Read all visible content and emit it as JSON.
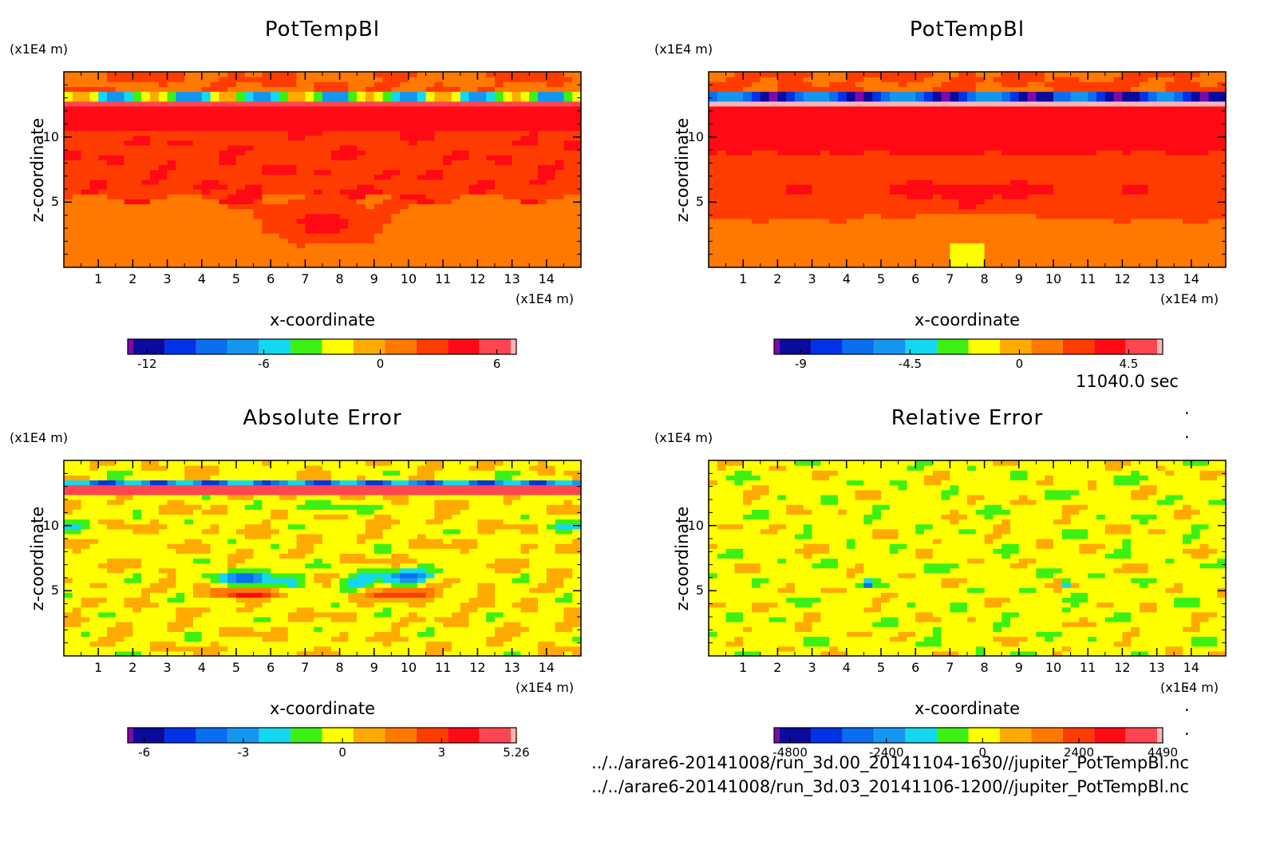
{
  "timestamp": "11040.0 sec",
  "files": [
    "../../arare6-20141008/run_3d.00_20141104-1630//jupiter_PotTempBl.nc",
    "../../arare6-20141008/run_3d.03_20141106-1200//jupiter_PotTempBl.nc"
  ],
  "chart_data": [
    {
      "type": "heatmap",
      "title": "PotTempBl",
      "xlabel": "x-coordinate",
      "ylabel": "z-coordinate",
      "x_unit": "(x1E4 m)",
      "y_unit": "(x1E4 m)",
      "xlim": [
        0,
        15
      ],
      "ylim": [
        0,
        15
      ],
      "x_ticks": [
        "1",
        "2",
        "3",
        "4",
        "5",
        "6",
        "7",
        "8",
        "9",
        "10",
        "11",
        "12",
        "13",
        "14"
      ],
      "y_ticks": [
        "5",
        "10"
      ],
      "colorbar": {
        "colors": [
          "#7d0aa8",
          "#0a0a9c",
          "#0032e6",
          "#0a6ef0",
          "#1496f0",
          "#14d7f0",
          "#3cf014",
          "#ffff00",
          "#ffaa00",
          "#ff7800",
          "#ff3c00",
          "#ff0a14",
          "#ff4650",
          "#ffb4b4"
        ],
        "range": [
          -13,
          7
        ],
        "tick_values": [
          -12,
          -6,
          0,
          6
        ],
        "tick_labels": [
          "-12",
          "-6",
          "0",
          "6"
        ]
      },
      "field_values": [
        {
          "z": [
            0,
            3.7
          ],
          "value": 0.5
        },
        {
          "z": [
            3.7,
            5.3
          ],
          "value": 2.5
        },
        {
          "z": [
            5.3,
            10.5
          ],
          "value": 2.5
        },
        {
          "z": [
            10.5,
            12.3
          ],
          "value": 3.5
        },
        {
          "z": [
            12.3,
            12.9
          ],
          "value": 5.0
        },
        {
          "z": [
            12.9,
            13.4
          ],
          "value": -4.5
        },
        {
          "z": [
            13.4,
            15
          ],
          "value": 1.5
        }
      ]
    },
    {
      "type": "heatmap",
      "title": "PotTempBl",
      "xlabel": "x-coordinate",
      "ylabel": "z-coordinate",
      "x_unit": "(x1E4 m)",
      "y_unit": "(x1E4 m)",
      "xlim": [
        0,
        15
      ],
      "ylim": [
        0,
        15
      ],
      "x_ticks": [
        "1",
        "2",
        "3",
        "4",
        "5",
        "6",
        "7",
        "8",
        "9",
        "10",
        "11",
        "12",
        "13",
        "14"
      ],
      "y_ticks": [
        "5",
        "10"
      ],
      "colorbar": {
        "colors": [
          "#7d0aa8",
          "#0a0a9c",
          "#0032e6",
          "#0a6ef0",
          "#1496f0",
          "#14d7f0",
          "#3cf014",
          "#ffff00",
          "#ffaa00",
          "#ff7800",
          "#ff3c00",
          "#ff0a14",
          "#ff4650",
          "#ffb4b4"
        ],
        "range": [
          -10.1,
          5.9
        ],
        "tick_values": [
          -9,
          -4.5,
          0,
          4.5
        ],
        "tick_labels": [
          "-9",
          "-4.5",
          "0",
          "4.5"
        ]
      },
      "field_values": [
        {
          "z": [
            0,
            3.7
          ],
          "value": 0.5
        },
        {
          "z": [
            3.7,
            9.0
          ],
          "value": 1.8
        },
        {
          "z": [
            9.0,
            12.5
          ],
          "value": 3.0
        },
        {
          "z": [
            12.5,
            12.9
          ],
          "value": 5.0
        },
        {
          "z": [
            12.9,
            13.4
          ],
          "value": -7.0
        },
        {
          "z": [
            13.4,
            15
          ],
          "value": 1.5
        }
      ]
    },
    {
      "type": "heatmap",
      "title": "Absolute Error",
      "xlabel": "x-coordinate",
      "ylabel": "z-coordinate",
      "x_unit": "(x1E4 m)",
      "y_unit": "(x1E4 m)",
      "xlim": [
        0,
        15
      ],
      "ylim": [
        0,
        15
      ],
      "x_ticks": [
        "1",
        "2",
        "3",
        "4",
        "5",
        "6",
        "7",
        "8",
        "9",
        "10",
        "11",
        "12",
        "13",
        "14"
      ],
      "y_ticks": [
        "5",
        "10"
      ],
      "colorbar": {
        "colors": [
          "#7d0aa8",
          "#0a0a9c",
          "#0032e6",
          "#0a6ef0",
          "#1496f0",
          "#14d7f0",
          "#3cf014",
          "#ffff00",
          "#ffaa00",
          "#ff7800",
          "#ff3c00",
          "#ff0a14",
          "#ff4650",
          "#ffb4b4"
        ],
        "range": [
          -6.5,
          5.26
        ],
        "tick_values": [
          -6,
          -3,
          0,
          3,
          5.26
        ],
        "tick_labels": [
          "-6",
          "-3",
          "0",
          "3",
          "5.26"
        ]
      },
      "field_values": [
        {
          "z": [
            0,
            3.0
          ],
          "value": 0.5
        },
        {
          "z": [
            3.0,
            6.0
          ],
          "value": -0.5
        },
        {
          "z": [
            6.0,
            10.0
          ],
          "value": 0.5
        },
        {
          "z": [
            10.0,
            12.0
          ],
          "value": -0.5
        },
        {
          "z": [
            12.0,
            13.0
          ],
          "value": 3.5
        },
        {
          "z": [
            13.0,
            15
          ],
          "value": -0.5
        }
      ]
    },
    {
      "type": "heatmap",
      "title": "Relative Error",
      "xlabel": "x-coordinate",
      "ylabel": "z-coordinate",
      "x_unit": "(x1E4 m)",
      "y_unit": "(x1E4 m)",
      "xlim": [
        0,
        15
      ],
      "ylim": [
        0,
        15
      ],
      "x_ticks": [
        "1",
        "2",
        "3",
        "4",
        "5",
        "6",
        "7",
        "8",
        "9",
        "10",
        "11",
        "12",
        "13",
        "14"
      ],
      "y_ticks": [
        "5",
        "10"
      ],
      "colorbar": {
        "colors": [
          "#7d0aa8",
          "#0a0a9c",
          "#0032e6",
          "#0a6ef0",
          "#1496f0",
          "#14d7f0",
          "#3cf014",
          "#ffff00",
          "#ffaa00",
          "#ff7800",
          "#ff3c00",
          "#ff0a14",
          "#ff4650",
          "#ffb4b4"
        ],
        "range": [
          -5200,
          4490
        ],
        "tick_values": [
          -4800,
          -2400,
          0,
          2400,
          4490
        ],
        "tick_labels": [
          "-4800",
          "-2400",
          "0",
          "2400",
          "4490"
        ]
      },
      "field_values": [
        {
          "z": [
            0,
            15
          ],
          "value": -200
        },
        {
          "z": [
            0,
            15
          ],
          "value": 200
        }
      ]
    }
  ]
}
